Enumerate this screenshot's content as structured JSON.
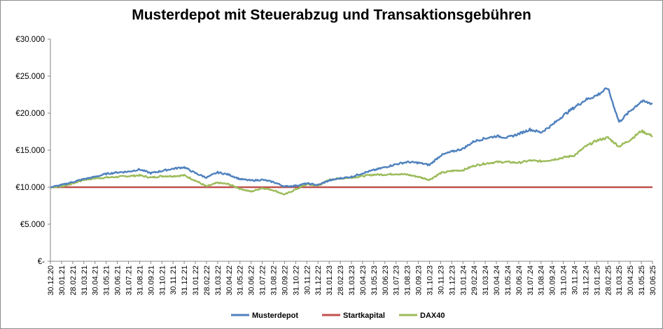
{
  "chart_data": {
    "type": "line",
    "title": "Musterdepot mit Steuerabzug und Transaktionsgebühren",
    "xlabel": "",
    "ylabel": "",
    "ylim": [
      0,
      30000
    ],
    "y_ticks": [
      0,
      5000,
      10000,
      15000,
      20000,
      25000,
      30000
    ],
    "y_tick_labels": [
      "€-",
      "€5.000",
      "€10.000",
      "€15.000",
      "€20.000",
      "€25.000",
      "€30.000"
    ],
    "x_ticks": [
      "30.12.20",
      "30.01.21",
      "28.02.21",
      "31.03.21",
      "30.04.21",
      "31.05.21",
      "30.06.21",
      "31.07.21",
      "31.08.21",
      "30.09.21",
      "31.10.21",
      "30.11.21",
      "31.12.21",
      "31.01.22",
      "28.02.22",
      "31.03.22",
      "30.04.22",
      "31.05.22",
      "30.06.22",
      "31.07.22",
      "31.08.22",
      "30.09.22",
      "31.10.22",
      "30.11.22",
      "31.12.22",
      "31.01.23",
      "28.02.23",
      "31.03.23",
      "30.04.23",
      "31.05.23",
      "30.06.23",
      "31.07.23",
      "31.08.23",
      "30.09.23",
      "31.10.23",
      "30.11.23",
      "31.12.23",
      "31.01.24",
      "29.02.24",
      "31.03.24",
      "30.04.24",
      "31.05.24",
      "30.06.24",
      "31.07.24",
      "31.08.24",
      "30.09.24",
      "31.10.24",
      "30.11.24",
      "31.12.24",
      "31.01.25",
      "28.02.25",
      "31.03.25",
      "30.04.25",
      "31.05.25",
      "30.06.25"
    ],
    "grid": false,
    "legend": "bottom",
    "series": [
      {
        "name": "Musterdepot",
        "color": "#4f81bd",
        "values": [
          10000,
          10300,
          10700,
          11100,
          11400,
          11800,
          12000,
          12100,
          12400,
          11900,
          12200,
          12500,
          12700,
          11900,
          11300,
          12000,
          11700,
          11100,
          10900,
          11000,
          10700,
          10100,
          10200,
          10500,
          10300,
          10900,
          11200,
          11400,
          11900,
          12300,
          12700,
          13100,
          13400,
          13300,
          13000,
          14300,
          14800,
          15200,
          16200,
          16600,
          16900,
          16700,
          17200,
          17800,
          17400,
          18400,
          19700,
          20800,
          21800,
          22400,
          23400,
          18800,
          20300,
          21600,
          21300
        ]
      },
      {
        "name": "Startkapital",
        "color": "#c0504d",
        "values": [
          10000,
          10000,
          10000,
          10000,
          10000,
          10000,
          10000,
          10000,
          10000,
          10000,
          10000,
          10000,
          10000,
          10000,
          10000,
          10000,
          10000,
          10000,
          10000,
          10000,
          10000,
          10000,
          10000,
          10000,
          10000,
          10000,
          10000,
          10000,
          10000,
          10000,
          10000,
          10000,
          10000,
          10000,
          10000,
          10000,
          10000,
          10000,
          10000,
          10000,
          10000,
          10000,
          10000,
          10000,
          10000,
          10000,
          10000,
          10000,
          10000,
          10000,
          10000,
          10000,
          10000,
          10000,
          10000
        ]
      },
      {
        "name": "DAX40",
        "color": "#9bbb59",
        "values": [
          10000,
          10100,
          10500,
          11000,
          11200,
          11300,
          11400,
          11500,
          11600,
          11300,
          11500,
          11500,
          11600,
          10900,
          10100,
          10600,
          10400,
          9800,
          9400,
          9900,
          9600,
          9000,
          9700,
          10400,
          10200,
          11000,
          11200,
          11300,
          11500,
          11700,
          11700,
          11800,
          11700,
          11400,
          11000,
          11900,
          12200,
          12300,
          12900,
          13200,
          13400,
          13400,
          13300,
          13600,
          13500,
          13700,
          14000,
          14300,
          15500,
          16300,
          16700,
          15500,
          16400,
          17600,
          16900
        ]
      }
    ]
  }
}
